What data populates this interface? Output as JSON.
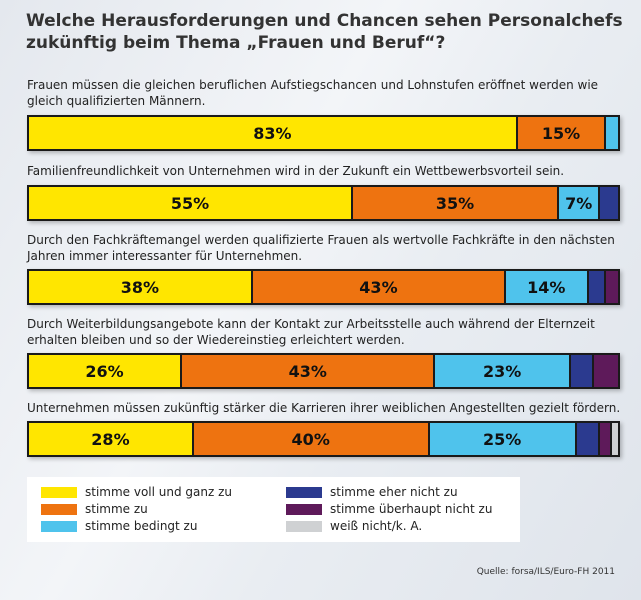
{
  "chart_data": {
    "type": "bar",
    "orientation": "horizontal",
    "stacked": true,
    "title": "Welche Herausforderungen und Chancen sehen Personalchefs zukünftig beim Thema „Frauen und Beruf“?",
    "categories": [
      "Frauen müssen die gleichen beruflichen Aufstiegschancen und Lohnstufen eröffnet werden wie gleich qualifizierten Männern.",
      "Familienfreundlichkeit von Unternehmen wird in der Zukunft ein Wettbewerbsvorteil sein.",
      "Durch den Fachkräftemangel werden qualifizierte Frauen als wertvolle Fachkräfte in den nächsten Jahren immer interessanter für Unternehmen.",
      "Durch Weiterbildungsangebote kann der Kontakt zur Arbeitsstelle auch während der Elternzeit erhalten bleiben und so der Wiedereinstieg erleichtert werden.",
      "Unternehmen müssen zukünftig stärker die Karrieren ihrer weiblichen Angestellten gezielt fördern."
    ],
    "series": [
      {
        "name": "stimme voll und ganz zu",
        "color": "#ffe600",
        "values": [
          83,
          55,
          38,
          26,
          28
        ]
      },
      {
        "name": "stimme zu",
        "color": "#ee7310",
        "values": [
          15,
          35,
          43,
          43,
          40
        ]
      },
      {
        "name": "stimme bedingt zu",
        "color": "#4fc3ec",
        "values": [
          2,
          7,
          14,
          23,
          25
        ]
      },
      {
        "name": "stimme eher nicht zu",
        "color": "#2b3a8f",
        "values": [
          0,
          3,
          3,
          4,
          4
        ]
      },
      {
        "name": "stimme überhaupt nicht zu",
        "color": "#5e1a5a",
        "values": [
          0,
          0,
          2,
          4,
          2
        ]
      },
      {
        "name": "weiß nicht/k. A.",
        "color": "#cfd1d3",
        "values": [
          0,
          0,
          0,
          0,
          1
        ]
      }
    ],
    "data_labels": [
      [
        "83%",
        "15%"
      ],
      [
        "55%",
        "35%",
        "7%"
      ],
      [
        "38%",
        "43%",
        "14%"
      ],
      [
        "26%",
        "43%",
        "23%"
      ],
      [
        "28%",
        "40%",
        "25%"
      ]
    ],
    "xlim": [
      0,
      100
    ],
    "legend": "bottom"
  },
  "source": "Quelle: forsa/ILS/Euro-FH 2011"
}
